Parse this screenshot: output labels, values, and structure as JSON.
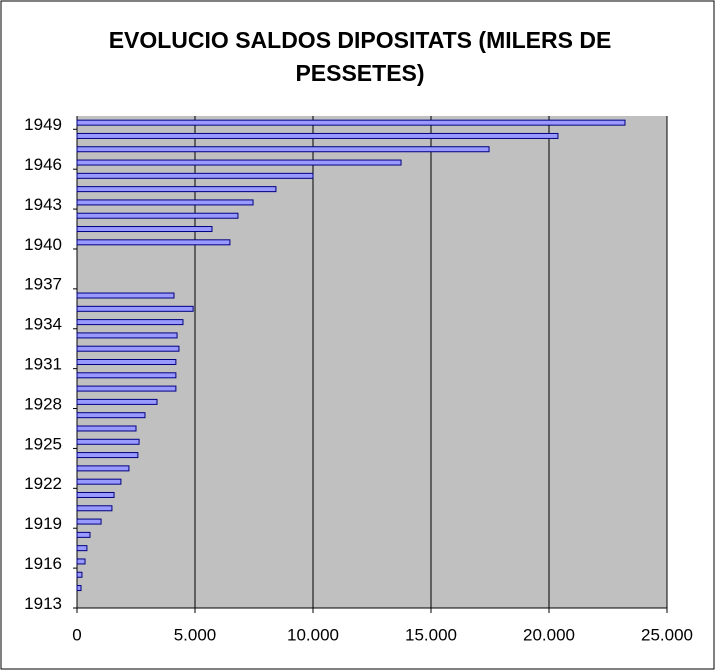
{
  "chart_data": {
    "type": "barh",
    "title": "EVOLUCIO SALDOS DIPOSITATS (MILERS DE PESSETES)",
    "categories": [
      1913,
      null,
      null,
      1916,
      null,
      null,
      1919,
      null,
      null,
      1922,
      null,
      null,
      1925,
      null,
      null,
      1928,
      null,
      null,
      1931,
      null,
      null,
      1934,
      null,
      null,
      1937,
      null,
      null,
      1940,
      null,
      null,
      1943,
      null,
      null,
      1946,
      null,
      null,
      1949
    ],
    "values": [
      null,
      170,
      210,
      340,
      420,
      550,
      1020,
      1480,
      1570,
      1860,
      2200,
      2580,
      2630,
      2500,
      2880,
      3390,
      4190,
      4190,
      4190,
      4320,
      4240,
      4490,
      4920,
      4110,
      null,
      null,
      null,
      6480,
      5720,
      6820,
      7460,
      8430,
      10000,
      13730,
      17460,
      20380,
      23220
    ],
    "color": "#9999ff",
    "xlim": [
      0,
      25000
    ],
    "xticks": [
      0,
      {
        "value": 5000,
        "label": "5.000"
      },
      {
        "value": 10000,
        "label": "10.000"
      },
      {
        "value": 15000,
        "label": "15.000"
      },
      {
        "value": 20000,
        "label": "20.000"
      },
      {
        "value": 25000,
        "label": "25.000"
      }
    ],
    "grid": true
  }
}
